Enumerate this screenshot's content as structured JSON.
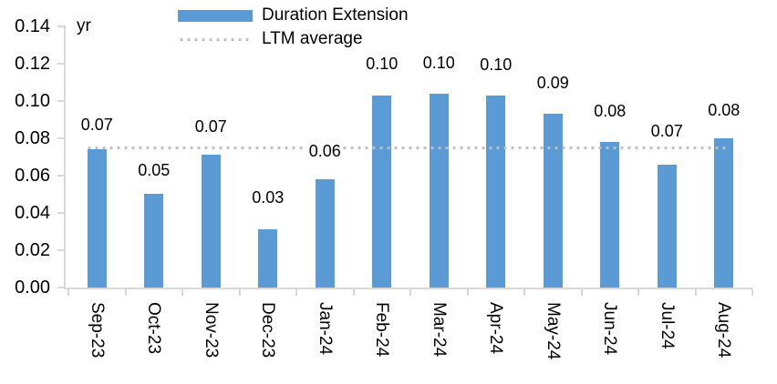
{
  "chart_data": {
    "type": "bar",
    "unit_label": "yr",
    "categories": [
      "Sep-23",
      "Oct-23",
      "Nov-23",
      "Dec-23",
      "Jan-24",
      "Feb-24",
      "Mar-24",
      "Apr-24",
      "May-24",
      "Jun-24",
      "Jul-24",
      "Aug-24"
    ],
    "series": [
      {
        "name": "Duration Extension",
        "type": "bar",
        "color": "#5B9BD5",
        "values": [
          0.074,
          0.05,
          0.071,
          0.031,
          0.058,
          0.103,
          0.104,
          0.103,
          0.093,
          0.078,
          0.066,
          0.08
        ],
        "data_labels": [
          "0.07",
          "0.05",
          "0.07",
          "0.03",
          "0.06",
          "0.10",
          "0.10",
          "0.10",
          "0.09",
          "0.08",
          "0.07",
          "0.08"
        ]
      },
      {
        "name": "LTM average",
        "type": "line",
        "line_style": "dotted",
        "color": "#BFBFBF",
        "value": 0.075
      }
    ],
    "y_axis": {
      "min": 0,
      "max": 0.14,
      "tick_interval": 0.02,
      "tick_labels": [
        "0.00",
        "0.02",
        "0.04",
        "0.06",
        "0.08",
        "0.10",
        "0.12",
        "0.14"
      ]
    },
    "legend_position": "top",
    "grid": false,
    "colors": {
      "axis": "#D9D9D9",
      "text": "#000000",
      "background": "#FFFFFF"
    }
  }
}
